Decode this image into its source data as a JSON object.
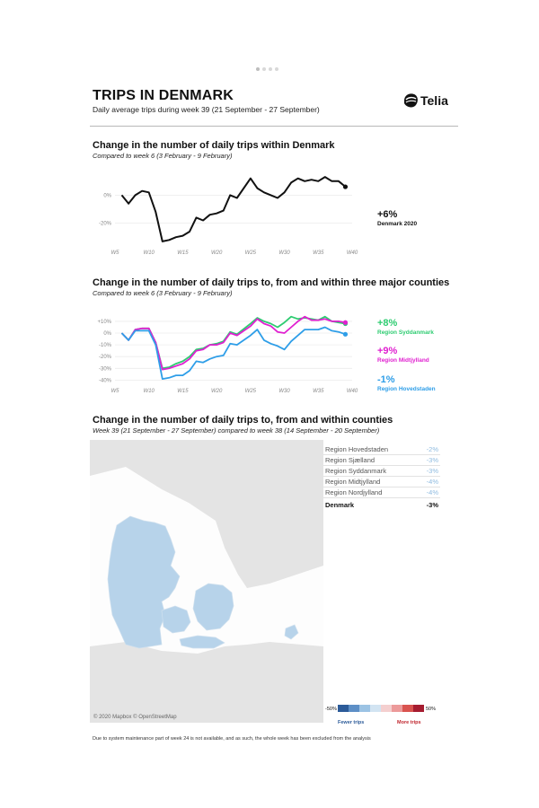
{
  "header": {
    "title": "TRIPS IN DENMARK",
    "subtitle": "Daily average trips during week 39 (21 September - 27 September)",
    "logo_text": "Telia"
  },
  "section1": {
    "title": "Change in the number of daily trips within Denmark",
    "subtitle": "Compared to week 6 (3 February - 9 February)",
    "annotation_value": "+6%",
    "annotation_label": "Denmark 2020"
  },
  "section2": {
    "title": "Change in the number of daily trips to, from and within three major counties",
    "subtitle": "Compared to week 6 (3 February - 9 February)",
    "annotations": [
      {
        "value": "+8%",
        "label": "Region Syddanmark",
        "color": "#2ecc71"
      },
      {
        "value": "+9%",
        "label": "Region Midtjylland",
        "color": "#e020d0"
      },
      {
        "value": "-1%",
        "label": "Region Hovedstaden",
        "color": "#2e9ee8"
      }
    ]
  },
  "section3": {
    "title": "Change in the number of daily trips to, from and within counties",
    "subtitle": "Week 39 (21 September - 27 September) compared to week 38 (14 September - 20 September)",
    "map_credit": "© 2020 Mapbox © OpenStreetMap",
    "regions": [
      {
        "name": "Region Hovedstaden",
        "value": "-2%"
      },
      {
        "name": "Region Sjælland",
        "value": "-3%"
      },
      {
        "name": "Region Syddanmark",
        "value": "-3%"
      },
      {
        "name": "Region Midtjylland",
        "value": "-4%"
      },
      {
        "name": "Region Nordjylland",
        "value": "-4%"
      }
    ],
    "total": {
      "name": "Denmark",
      "value": "-3%"
    },
    "legend": {
      "min": "-50%",
      "max": "50%",
      "fewer": "Fewer trips",
      "more": "More trips"
    }
  },
  "footnote": "Due to system maintenance part of week 24 is not available, and as such, the whole week has been excluded from the analysis",
  "chart_data": [
    {
      "type": "line",
      "title": "Change in the number of daily trips within Denmark",
      "x_ticks": [
        "W5",
        "W10",
        "W15",
        "W20",
        "W25",
        "W30",
        "W35",
        "W40"
      ],
      "y_ticks": [
        "0%",
        "-20%"
      ],
      "x": [
        6,
        7,
        8,
        9,
        10,
        11,
        12,
        13,
        14,
        15,
        16,
        17,
        18,
        19,
        20,
        21,
        22,
        23,
        25,
        26,
        27,
        28,
        29,
        30,
        31,
        32,
        33,
        34,
        35,
        36,
        37,
        38,
        39
      ],
      "series": [
        {
          "name": "Denmark 2020",
          "color": "#111111",
          "values": [
            0,
            -6,
            0,
            3,
            2,
            -12,
            -33,
            -32,
            -30,
            -29,
            -26,
            -16,
            -18,
            -14,
            -13,
            -11,
            0,
            -2,
            12,
            5,
            2,
            0,
            -2,
            2,
            9,
            12,
            10,
            11,
            10,
            13,
            10,
            10,
            6
          ]
        }
      ],
      "ylim": [
        -35,
        15
      ],
      "grid": true
    },
    {
      "type": "line",
      "title": "Change in the number of daily trips to, from and within three major counties",
      "x_ticks": [
        "W5",
        "W10",
        "W15",
        "W20",
        "W25",
        "W30",
        "W35",
        "W40"
      ],
      "y_ticks": [
        "+10%",
        "0%",
        "-10%",
        "-20%",
        "-30%",
        "-40%"
      ],
      "x": [
        6,
        7,
        8,
        9,
        10,
        11,
        12,
        13,
        14,
        15,
        16,
        17,
        18,
        19,
        20,
        21,
        22,
        23,
        25,
        26,
        27,
        28,
        29,
        30,
        31,
        32,
        33,
        34,
        35,
        36,
        37,
        38,
        39
      ],
      "series": [
        {
          "name": "Region Syddanmark",
          "color": "#2ecc71",
          "values": [
            0,
            -6,
            3,
            4,
            4,
            -8,
            -30,
            -29,
            -26,
            -24,
            -20,
            -14,
            -13,
            -10,
            -9,
            -7,
            1,
            -1,
            8,
            13,
            10,
            8,
            5,
            9,
            14,
            12,
            13,
            12,
            11,
            14,
            10,
            9,
            8
          ]
        },
        {
          "name": "Region Midtjylland",
          "color": "#e020d0",
          "values": [
            0,
            -6,
            3,
            4,
            4,
            -8,
            -31,
            -30,
            -28,
            -26,
            -22,
            -15,
            -14,
            -10,
            -10,
            -8,
            0,
            -2,
            6,
            12,
            8,
            6,
            1,
            0,
            5,
            10,
            14,
            11,
            11,
            12,
            10,
            10,
            9
          ]
        },
        {
          "name": "Region Hovedstaden",
          "color": "#2e9ee8",
          "values": [
            0,
            -6,
            2,
            2,
            2,
            -10,
            -39,
            -38,
            -36,
            -36,
            -32,
            -24,
            -25,
            -22,
            -20,
            -19,
            -9,
            -10,
            -2,
            3,
            -6,
            -9,
            -11,
            -14,
            -7,
            -2,
            3,
            3,
            3,
            5,
            2,
            1,
            -1
          ]
        }
      ],
      "ylim": [
        -42,
        13
      ],
      "grid": true
    }
  ]
}
